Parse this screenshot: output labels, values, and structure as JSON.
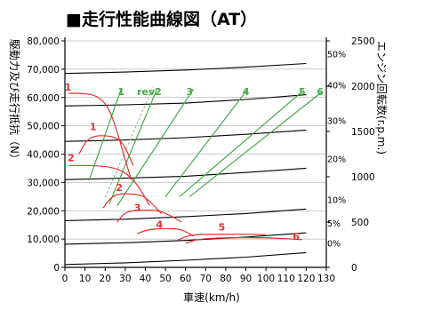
{
  "chart_data": {
    "type": "line",
    "title": "■走行性能曲線図（AT）",
    "xlabel": "車速(km/h)",
    "ylabel_left": "駆動力及び走行抵抗（N）",
    "ylabel_right": "エンジン回転数(r.p.m.)",
    "xlim": [
      0,
      130
    ],
    "ylim_left": [
      0,
      80000
    ],
    "ylim_right": [
      0,
      2500
    ],
    "x_ticks": [
      0,
      10,
      20,
      30,
      40,
      50,
      60,
      70,
      80,
      90,
      100,
      110,
      120,
      130
    ],
    "y_ticks_left": [
      "0",
      "10,000",
      "20,000",
      "30,000",
      "40,000",
      "50,000",
      "60,000",
      "70,000",
      "80,000"
    ],
    "y_ticks_right": [
      "0",
      "500",
      "1000",
      "1500",
      "2000",
      "2500"
    ],
    "grid": "horizontal",
    "colors": {
      "drive": "#e83030",
      "rpm": "#44aa44",
      "resistance": "#000000"
    },
    "resistance_curves": [
      {
        "label": "0%",
        "points": [
          [
            0,
            1000
          ],
          [
            30,
            1600
          ],
          [
            60,
            2500
          ],
          [
            90,
            3600
          ],
          [
            120,
            5200
          ]
        ]
      },
      {
        "label": "5%",
        "points": [
          [
            0,
            8200
          ],
          [
            30,
            8700
          ],
          [
            60,
            9500
          ],
          [
            90,
            10700
          ],
          [
            120,
            12200
          ]
        ]
      },
      {
        "label": "10%",
        "points": [
          [
            0,
            16500
          ],
          [
            30,
            17000
          ],
          [
            60,
            17900
          ],
          [
            90,
            19000
          ],
          [
            120,
            20600
          ]
        ]
      },
      {
        "label": "20%",
        "points": [
          [
            0,
            31000
          ],
          [
            30,
            31500
          ],
          [
            60,
            32200
          ],
          [
            90,
            33500
          ],
          [
            120,
            35000
          ]
        ]
      },
      {
        "label": "30%",
        "points": [
          [
            0,
            44500
          ],
          [
            30,
            45000
          ],
          [
            60,
            45800
          ],
          [
            90,
            47000
          ],
          [
            120,
            48500
          ]
        ]
      },
      {
        "label": "40%",
        "points": [
          [
            0,
            57000
          ],
          [
            30,
            57400
          ],
          [
            60,
            58000
          ],
          [
            90,
            59300
          ],
          [
            120,
            61000
          ]
        ]
      },
      {
        "label": "50%",
        "points": [
          [
            0,
            68500
          ],
          [
            30,
            69000
          ],
          [
            60,
            69700
          ],
          [
            90,
            70700
          ],
          [
            120,
            72000
          ]
        ]
      }
    ],
    "drive_curves": [
      {
        "label": "1",
        "points": [
          [
            2,
            61500
          ],
          [
            8,
            61500
          ],
          [
            14,
            61000
          ],
          [
            18,
            59500
          ],
          [
            22,
            56000
          ],
          [
            26,
            48000
          ],
          [
            30,
            38000
          ],
          [
            33,
            31000
          ]
        ]
      },
      {
        "label": "1",
        "points": [
          [
            7,
            40000
          ],
          [
            12,
            46500
          ],
          [
            24,
            46500
          ],
          [
            29,
            44000
          ],
          [
            34,
            36000
          ]
        ]
      },
      {
        "label": "2",
        "points": [
          [
            2,
            36000
          ],
          [
            18,
            36000
          ],
          [
            28,
            34500
          ],
          [
            34,
            31000
          ],
          [
            38,
            27000
          ],
          [
            42,
            22000
          ]
        ]
      },
      {
        "label": "2",
        "points": [
          [
            19,
            21000
          ],
          [
            22,
            24000
          ],
          [
            26,
            26000
          ],
          [
            34,
            26000
          ],
          [
            40,
            25000
          ],
          [
            48,
            19000
          ]
        ]
      },
      {
        "label": "3",
        "points": [
          [
            26,
            16000
          ],
          [
            30,
            19500
          ],
          [
            36,
            20200
          ],
          [
            46,
            20200
          ],
          [
            52,
            18500
          ],
          [
            58,
            16000
          ]
        ]
      },
      {
        "label": "4",
        "points": [
          [
            36,
            12000
          ],
          [
            42,
            13500
          ],
          [
            50,
            13700
          ],
          [
            58,
            13500
          ],
          [
            64,
            11000
          ]
        ]
      },
      {
        "label": "5",
        "points": [
          [
            56,
            9500
          ],
          [
            62,
            11500
          ],
          [
            75,
            11700
          ],
          [
            95,
            11700
          ],
          [
            100,
            11500
          ]
        ]
      },
      {
        "label": "6",
        "points": [
          [
            60,
            8500
          ],
          [
            66,
            10000
          ],
          [
            80,
            10500
          ],
          [
            100,
            10500
          ],
          [
            118,
            9800
          ]
        ]
      }
    ],
    "rpm_lines": [
      {
        "label": "1",
        "points": [
          [
            12,
            960
          ],
          [
            28,
            1970
          ]
        ]
      },
      {
        "label": "rev2",
        "points": [
          [
            20,
            770
          ],
          [
            44,
            2000
          ]
        ],
        "dashed": true
      },
      {
        "label": "rev2",
        "points": [
          [
            22,
            700
          ],
          [
            46,
            1980
          ]
        ]
      },
      {
        "label": "3",
        "points": [
          [
            26,
            680
          ],
          [
            64,
            1970
          ]
        ]
      },
      {
        "label": "4",
        "points": [
          [
            50,
            780
          ],
          [
            91,
            1970
          ]
        ]
      },
      {
        "label": "5",
        "points": [
          [
            57,
            780
          ],
          [
            118,
            1940
          ]
        ]
      },
      {
        "label": "6",
        "points": [
          [
            62,
            780
          ],
          [
            128,
            1940
          ]
        ]
      }
    ],
    "rpm_label_x": {
      "1": 28,
      "rev2": 42,
      "3": 62,
      "4": 90,
      "5": 118,
      "6": 127
    },
    "drive_label_pos": [
      {
        "text": "1",
        "x": 1.5,
        "y": 62500
      },
      {
        "text": "1",
        "x": 14,
        "y": 48500
      },
      {
        "text": "2",
        "x": 3,
        "y": 37500
      },
      {
        "text": "2",
        "x": 27,
        "y": 27000
      },
      {
        "text": "3",
        "x": 36,
        "y": 20000
      },
      {
        "text": "4",
        "x": 47,
        "y": 14000
      },
      {
        "text": "5",
        "x": 78,
        "y": 13000
      },
      {
        "text": "6",
        "x": 115,
        "y": 9800
      }
    ]
  }
}
